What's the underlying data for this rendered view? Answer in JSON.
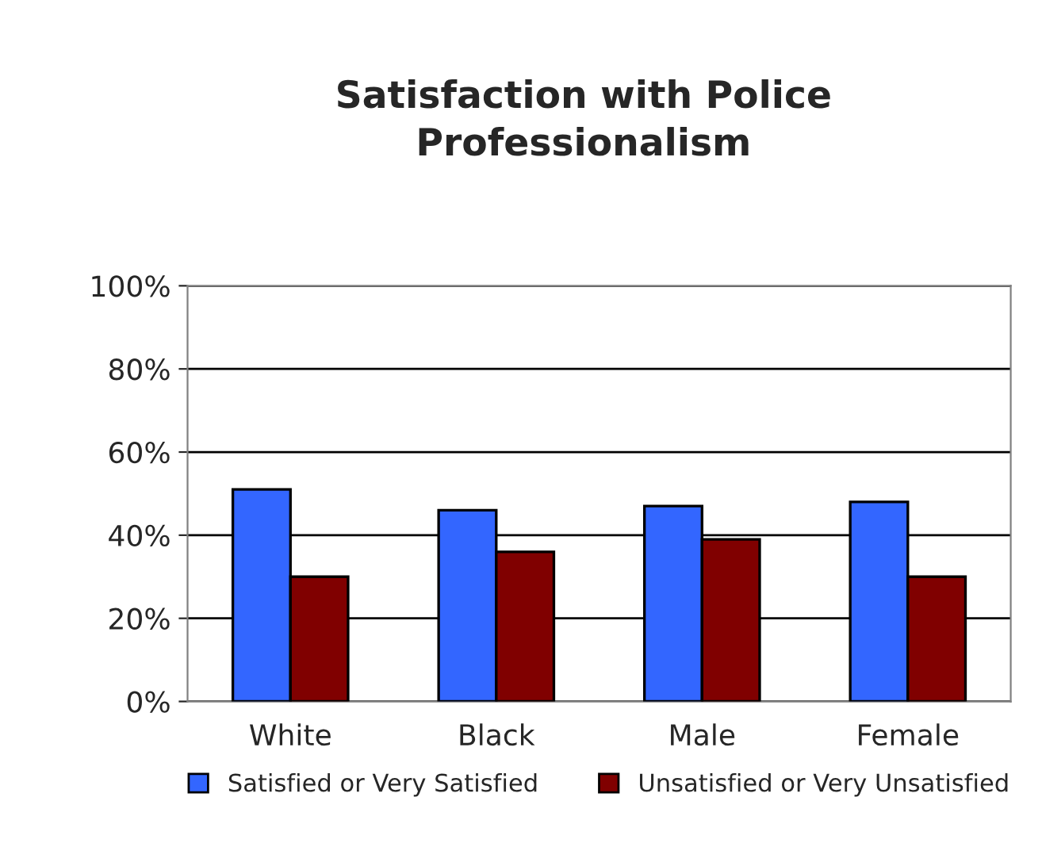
{
  "chart_data": {
    "type": "bar",
    "title": "Satisfaction with Police\nProfessionalism",
    "categories": [
      "White",
      "Black",
      "Male",
      "Female"
    ],
    "series": [
      {
        "name": "Satisfied or Very Satisfied",
        "color": "#3366ff",
        "values": [
          51,
          46,
          47,
          48
        ]
      },
      {
        "name": "Unsatisfied or Very Unsatisfied",
        "color": "#800000",
        "values": [
          30,
          36,
          39,
          30
        ]
      }
    ],
    "ylim": [
      0,
      100
    ],
    "yticks": [
      {
        "value": 0,
        "label": "0%"
      },
      {
        "value": 20,
        "label": "20%"
      },
      {
        "value": 40,
        "label": "40%"
      },
      {
        "value": 60,
        "label": "60%"
      },
      {
        "value": 80,
        "label": "80%"
      },
      {
        "value": 100,
        "label": "100%"
      }
    ],
    "grid": "y",
    "legend": "bottom"
  }
}
